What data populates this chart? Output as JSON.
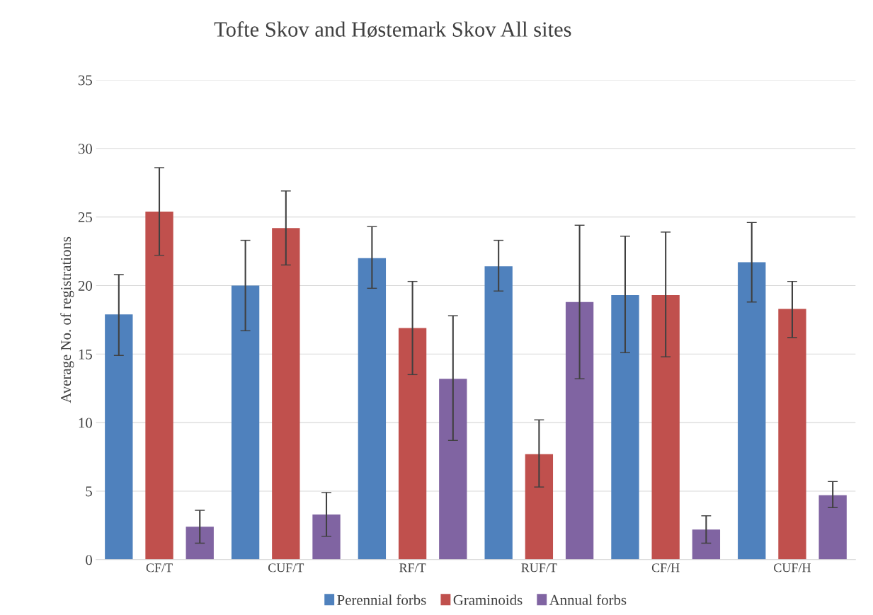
{
  "chart_data": {
    "type": "bar",
    "title": "Tofte Skov and Høstemark Skov All sites",
    "ylabel": "Average No. of registrations",
    "categories": [
      "CF/T",
      "CUF/T",
      "RF/T",
      "RUF/T",
      "CF/H",
      "CUF/H"
    ],
    "series": [
      {
        "name": "Perennial forbs",
        "color": "#4f81bd",
        "values": [
          17.9,
          20.0,
          22.0,
          21.4,
          19.3,
          21.7
        ],
        "errors": [
          [
            14.9,
            20.8
          ],
          [
            16.7,
            23.3
          ],
          [
            19.8,
            24.3
          ],
          [
            19.6,
            23.3
          ],
          [
            15.1,
            23.6
          ],
          [
            18.8,
            24.6
          ]
        ]
      },
      {
        "name": "Graminoids",
        "color": "#c0504d",
        "values": [
          25.4,
          24.2,
          16.9,
          7.7,
          19.3,
          18.3
        ],
        "errors": [
          [
            22.2,
            28.6
          ],
          [
            21.5,
            26.9
          ],
          [
            13.5,
            20.3
          ],
          [
            5.3,
            10.2
          ],
          [
            14.8,
            23.9
          ],
          [
            16.2,
            20.3
          ]
        ]
      },
      {
        "name": "Annual forbs",
        "color": "#8064a2",
        "values": [
          2.4,
          3.3,
          13.2,
          18.8,
          2.2,
          4.7
        ],
        "errors": [
          [
            1.2,
            3.6
          ],
          [
            1.7,
            4.9
          ],
          [
            8.7,
            17.8
          ],
          [
            13.2,
            24.4
          ],
          [
            1.2,
            3.2
          ],
          [
            3.8,
            5.7
          ]
        ]
      }
    ],
    "ylim": [
      0,
      35
    ],
    "yticks": [
      0,
      5,
      10,
      15,
      20,
      25,
      30,
      35
    ],
    "grid": "y",
    "legend": "bottom"
  }
}
